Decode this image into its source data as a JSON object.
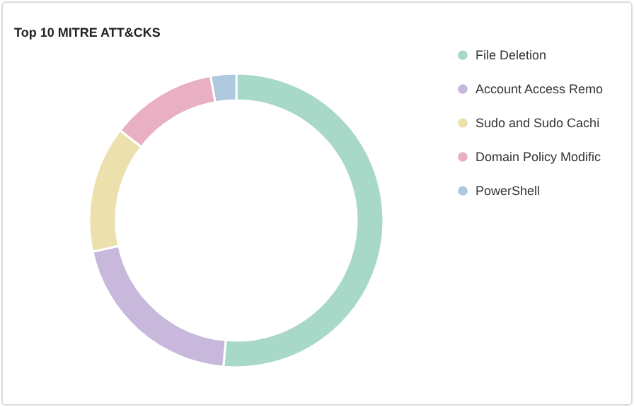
{
  "chart_data": {
    "type": "donut",
    "title": "Top 10 MITRE ATT&CKS",
    "categories": [
      "File Deletion",
      "Account Access Remo",
      "Sudo and Sudo Cachi",
      "Domain Policy Modific",
      "PowerShell"
    ],
    "values": [
      51.4,
      20.2,
      13.9,
      11.7,
      2.8
    ],
    "colors": [
      "#a8d8c8",
      "#c8b8dc",
      "#ece0ac",
      "#e8b0c2",
      "#aec8e0"
    ],
    "legend": "top right"
  }
}
